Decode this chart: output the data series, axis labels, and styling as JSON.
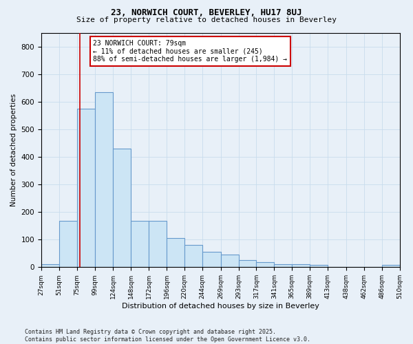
{
  "title1": "23, NORWICH COURT, BEVERLEY, HU17 8UJ",
  "title2": "Size of property relative to detached houses in Beverley",
  "xlabel": "Distribution of detached houses by size in Beverley",
  "ylabel": "Number of detached properties",
  "footnote1": "Contains HM Land Registry data © Crown copyright and database right 2025.",
  "footnote2": "Contains public sector information licensed under the Open Government Licence v3.0.",
  "annotation_title": "23 NORWICH COURT: 79sqm",
  "annotation_line1": "← 11% of detached houses are smaller (245)",
  "annotation_line2": "88% of semi-detached houses are larger (1,984) →",
  "property_size": 79,
  "bin_edges": [
    27,
    51,
    75,
    99,
    124,
    148,
    172,
    196,
    220,
    244,
    269,
    293,
    317,
    341,
    365,
    389,
    413,
    438,
    462,
    486,
    510
  ],
  "bar_heights": [
    12,
    168,
    575,
    635,
    430,
    168,
    168,
    105,
    80,
    55,
    45,
    25,
    18,
    10,
    10,
    8,
    0,
    0,
    0,
    8
  ],
  "bar_facecolor": "#cce5f5",
  "bar_edgecolor": "#6699cc",
  "vline_color": "#cc0000",
  "annotation_box_edgecolor": "#cc0000",
  "annotation_box_facecolor": "#ffffff",
  "ylim": [
    0,
    850
  ],
  "yticks": [
    0,
    100,
    200,
    300,
    400,
    500,
    600,
    700,
    800
  ],
  "grid_color": "#c8dced",
  "background_color": "#e8f0f8"
}
